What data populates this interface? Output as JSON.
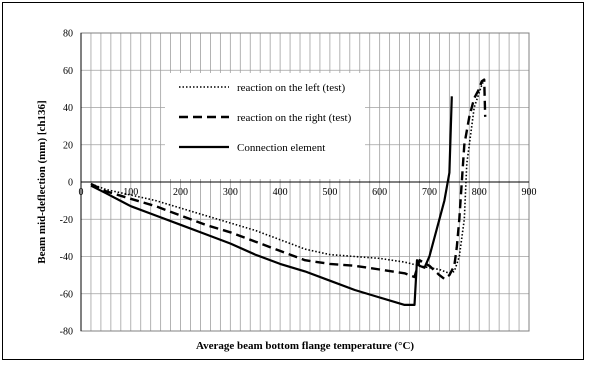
{
  "chart_data": {
    "type": "line",
    "title": "",
    "xlabel": "Average beam bottom flange temperature (°C)",
    "ylabel": "Beam mid-deflection (mm) [ch136]",
    "xlim": [
      0,
      900
    ],
    "ylim": [
      -80,
      80
    ],
    "x_ticks": [
      0,
      100,
      200,
      300,
      400,
      500,
      600,
      700,
      800,
      900
    ],
    "y_ticks": [
      80,
      60,
      40,
      20,
      0,
      -20,
      -40,
      -60,
      -80
    ],
    "x_tick_labels": [
      "0",
      "100",
      "200",
      "300",
      "400",
      "500",
      "600",
      "700",
      "800",
      "900"
    ],
    "y_tick_labels": [
      "80",
      "60",
      "40",
      "20",
      "0",
      "-20",
      "-40",
      "-60",
      "-80"
    ],
    "x_minor_step": 20,
    "y_major_step": 20,
    "grid": true,
    "legend_position": "upper-center",
    "series": [
      {
        "name": "reaction on the left (test)",
        "style": "dotted",
        "color": "#000000",
        "points": [
          [
            20,
            -1
          ],
          [
            50,
            -4
          ],
          [
            100,
            -7
          ],
          [
            150,
            -10
          ],
          [
            200,
            -14
          ],
          [
            250,
            -18
          ],
          [
            300,
            -22
          ],
          [
            350,
            -26
          ],
          [
            400,
            -31
          ],
          [
            450,
            -36
          ],
          [
            500,
            -39
          ],
          [
            550,
            -40
          ],
          [
            600,
            -41
          ],
          [
            650,
            -43
          ],
          [
            680,
            -45
          ],
          [
            700,
            -46
          ],
          [
            720,
            -47
          ],
          [
            740,
            -49
          ],
          [
            750,
            -48
          ],
          [
            760,
            -40
          ],
          [
            770,
            -20
          ],
          [
            775,
            10
          ],
          [
            780,
            20
          ],
          [
            790,
            40
          ],
          [
            800,
            48
          ],
          [
            805,
            52
          ],
          [
            810,
            55
          ]
        ]
      },
      {
        "name": "reaction on the right (test)",
        "style": "dashed",
        "color": "#000000",
        "points": [
          [
            20,
            -1
          ],
          [
            50,
            -5
          ],
          [
            100,
            -9
          ],
          [
            150,
            -13
          ],
          [
            200,
            -18
          ],
          [
            250,
            -23
          ],
          [
            300,
            -27
          ],
          [
            350,
            -32
          ],
          [
            400,
            -37
          ],
          [
            450,
            -42
          ],
          [
            500,
            -44
          ],
          [
            550,
            -45
          ],
          [
            600,
            -47
          ],
          [
            650,
            -49
          ],
          [
            670,
            -51
          ],
          [
            680,
            -42
          ],
          [
            700,
            -45
          ],
          [
            720,
            -50
          ],
          [
            730,
            -52
          ],
          [
            740,
            -50
          ],
          [
            750,
            -45
          ],
          [
            755,
            -35
          ],
          [
            760,
            -20
          ],
          [
            765,
            0
          ],
          [
            770,
            20
          ],
          [
            780,
            35
          ],
          [
            790,
            45
          ],
          [
            800,
            50
          ],
          [
            805,
            54
          ],
          [
            810,
            55
          ],
          [
            812,
            35
          ]
        ]
      },
      {
        "name": "Connection element",
        "style": "solid",
        "color": "#000000",
        "points": [
          [
            20,
            -2
          ],
          [
            50,
            -6
          ],
          [
            100,
            -13
          ],
          [
            150,
            -18
          ],
          [
            200,
            -23
          ],
          [
            250,
            -28
          ],
          [
            300,
            -33
          ],
          [
            350,
            -39
          ],
          [
            400,
            -44
          ],
          [
            450,
            -48
          ],
          [
            500,
            -53
          ],
          [
            550,
            -58
          ],
          [
            600,
            -62
          ],
          [
            650,
            -66
          ],
          [
            670,
            -66
          ],
          [
            675,
            -42
          ],
          [
            680,
            -45
          ],
          [
            690,
            -46
          ],
          [
            700,
            -40
          ],
          [
            710,
            -30
          ],
          [
            720,
            -20
          ],
          [
            730,
            -10
          ],
          [
            740,
            5
          ],
          [
            745,
            46
          ]
        ]
      }
    ]
  }
}
